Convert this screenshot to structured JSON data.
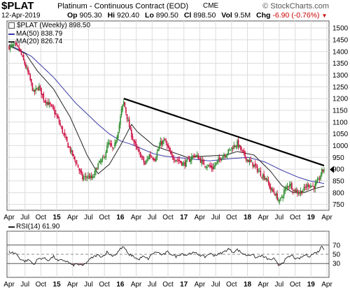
{
  "header": {
    "symbol": "$PLAT",
    "description": "Platinum - Continuous Contract (EOD)",
    "exchange": "CME",
    "date": "12-Apr-2019",
    "op_label": "Op",
    "op_value": "905.30",
    "hi_label": "Hi",
    "hi_value": "920.40",
    "lo_label": "Lo",
    "lo_value": "890.50",
    "cl_label": "Cl",
    "cl_value": "898.50",
    "vol_label": "Vol",
    "vol_value": "9.5M",
    "chg_label": "Chg",
    "chg_value": "-6.90 (-0.76%)",
    "brand": "© StockCharts.com"
  },
  "legend": {
    "price": "$PLAT (Weekly) 898.50",
    "ma50": "MA(50) 838.79",
    "ma20": "MA(20) 826.74",
    "rsi": "RSI(14) 61.90"
  },
  "colors": {
    "up": "#2e8b2e",
    "down": "#cc1144",
    "ma50": "#3a3aa8",
    "ma20": "#222222",
    "trendline": "#000000",
    "grid": "#dcdcdc",
    "rsi_fill": "#b07090",
    "last_price": "#000000"
  },
  "chart_data": [
    {
      "type": "candlestick",
      "period": "weekly",
      "x_tick_labels": [
        "Apr",
        "Jul",
        "Oct",
        "15",
        "Apr",
        "Jul",
        "Oct",
        "16",
        "Apr",
        "Jul",
        "Oct",
        "17",
        "Apr",
        "Jul",
        "Oct",
        "18",
        "Apr",
        "Jul",
        "Oct",
        "19",
        "Apr"
      ],
      "y_tick_labels": [
        "750",
        "800",
        "850",
        "900",
        "950",
        "1000",
        "1050",
        "1100",
        "1150",
        "1200",
        "1250",
        "1300",
        "1350",
        "1400",
        "1450",
        "1500"
      ],
      "ylim": [
        725,
        1530
      ],
      "last_price": 898.5,
      "price_anchors": [
        [
          0,
          1420
        ],
        [
          5,
          1425
        ],
        [
          9,
          1410
        ],
        [
          13,
          1360
        ],
        [
          18,
          1295
        ],
        [
          22,
          1225
        ],
        [
          27,
          1250
        ],
        [
          31,
          1200
        ],
        [
          36,
          1175
        ],
        [
          40,
          1150
        ],
        [
          44,
          1110
        ],
        [
          48,
          1060
        ],
        [
          53,
          1000
        ],
        [
          57,
          960
        ],
        [
          61,
          920
        ],
        [
          66,
          860
        ],
        [
          70,
          870
        ],
        [
          75,
          860
        ],
        [
          80,
          920
        ],
        [
          85,
          945
        ],
        [
          89,
          1010
        ],
        [
          94,
          980
        ],
        [
          99,
          1090
        ],
        [
          101,
          1150
        ],
        [
          103,
          1185
        ],
        [
          106,
          1120
        ],
        [
          109,
          1060
        ],
        [
          114,
          990
        ],
        [
          118,
          960
        ],
        [
          122,
          920
        ],
        [
          126,
          960
        ],
        [
          131,
          945
        ],
        [
          136,
          1010
        ],
        [
          140,
          1020
        ],
        [
          145,
          960
        ],
        [
          149,
          945
        ],
        [
          153,
          935
        ],
        [
          157,
          920
        ],
        [
          162,
          940
        ],
        [
          166,
          960
        ],
        [
          170,
          950
        ],
        [
          174,
          925
        ],
        [
          178,
          915
        ],
        [
          183,
          905
        ],
        [
          187,
          930
        ],
        [
          191,
          955
        ],
        [
          195,
          965
        ],
        [
          200,
          990
        ],
        [
          205,
          1010
        ],
        [
          209,
          975
        ],
        [
          214,
          940
        ],
        [
          218,
          925
        ],
        [
          222,
          905
        ],
        [
          226,
          880
        ],
        [
          231,
          860
        ],
        [
          235,
          815
        ],
        [
          239,
          795
        ],
        [
          243,
          760
        ],
        [
          247,
          805
        ],
        [
          252,
          840
        ],
        [
          256,
          810
        ],
        [
          261,
          800
        ],
        [
          265,
          815
        ],
        [
          269,
          835
        ],
        [
          274,
          825
        ],
        [
          278,
          850
        ],
        [
          281,
          890
        ],
        [
          283,
          899
        ]
      ],
      "ma50_anchors": [
        [
          0,
          1430
        ],
        [
          20,
          1380
        ],
        [
          40,
          1290
        ],
        [
          60,
          1180
        ],
        [
          80,
          1090
        ],
        [
          90,
          1050
        ],
        [
          100,
          1020
        ],
        [
          110,
          1005
        ],
        [
          120,
          985
        ],
        [
          130,
          965
        ],
        [
          140,
          955
        ],
        [
          160,
          945
        ],
        [
          180,
          935
        ],
        [
          200,
          945
        ],
        [
          215,
          950
        ],
        [
          230,
          930
        ],
        [
          245,
          895
        ],
        [
          260,
          865
        ],
        [
          270,
          850
        ],
        [
          283,
          839
        ]
      ],
      "ma20_anchors": [
        [
          0,
          1425
        ],
        [
          15,
          1390
        ],
        [
          25,
          1320
        ],
        [
          40,
          1240
        ],
        [
          55,
          1120
        ],
        [
          70,
          960
        ],
        [
          80,
          880
        ],
        [
          90,
          920
        ],
        [
          100,
          1000
        ],
        [
          110,
          1090
        ],
        [
          115,
          1060
        ],
        [
          130,
          1000
        ],
        [
          145,
          975
        ],
        [
          160,
          950
        ],
        [
          175,
          955
        ],
        [
          195,
          960
        ],
        [
          205,
          975
        ],
        [
          220,
          960
        ],
        [
          235,
          890
        ],
        [
          245,
          830
        ],
        [
          255,
          800
        ],
        [
          265,
          800
        ],
        [
          275,
          818
        ],
        [
          283,
          827
        ]
      ],
      "trendline": {
        "from": [
          103,
          1200
        ],
        "to": [
          283,
          915
        ]
      }
    },
    {
      "type": "line",
      "title": "RSI(14) 61.90",
      "y_tick_labels": [
        "30",
        "50",
        "70"
      ],
      "reference_levels": [
        30,
        50,
        70
      ],
      "ylim": [
        0,
        100
      ],
      "last_value": 61.9,
      "rsi_anchors": [
        [
          0,
          55
        ],
        [
          6,
          52
        ],
        [
          10,
          40
        ],
        [
          14,
          35
        ],
        [
          18,
          38
        ],
        [
          22,
          28
        ],
        [
          26,
          40
        ],
        [
          31,
          42
        ],
        [
          35,
          37
        ],
        [
          40,
          45
        ],
        [
          44,
          35
        ],
        [
          48,
          38
        ],
        [
          53,
          33
        ],
        [
          57,
          26
        ],
        [
          61,
          29
        ],
        [
          66,
          25
        ],
        [
          70,
          33
        ],
        [
          74,
          42
        ],
        [
          79,
          48
        ],
        [
          84,
          45
        ],
        [
          88,
          55
        ],
        [
          92,
          47
        ],
        [
          96,
          50
        ],
        [
          100,
          62
        ],
        [
          103,
          66
        ],
        [
          107,
          50
        ],
        [
          111,
          47
        ],
        [
          116,
          38
        ],
        [
          120,
          45
        ],
        [
          125,
          40
        ],
        [
          129,
          52
        ],
        [
          133,
          55
        ],
        [
          138,
          48
        ],
        [
          142,
          55
        ],
        [
          146,
          50
        ],
        [
          150,
          45
        ],
        [
          155,
          52
        ],
        [
          159,
          48
        ],
        [
          163,
          53
        ],
        [
          168,
          52
        ],
        [
          172,
          48
        ],
        [
          176,
          44
        ],
        [
          180,
          52
        ],
        [
          184,
          48
        ],
        [
          188,
          50
        ],
        [
          193,
          55
        ],
        [
          197,
          62
        ],
        [
          201,
          55
        ],
        [
          205,
          60
        ],
        [
          209,
          53
        ],
        [
          213,
          48
        ],
        [
          218,
          50
        ],
        [
          222,
          42
        ],
        [
          226,
          47
        ],
        [
          230,
          43
        ],
        [
          234,
          38
        ],
        [
          238,
          40
        ],
        [
          242,
          26
        ],
        [
          246,
          33
        ],
        [
          250,
          42
        ],
        [
          254,
          48
        ],
        [
          258,
          39
        ],
        [
          262,
          42
        ],
        [
          266,
          49
        ],
        [
          270,
          46
        ],
        [
          274,
          52
        ],
        [
          278,
          56
        ],
        [
          281,
          68
        ],
        [
          283,
          62
        ]
      ]
    }
  ]
}
